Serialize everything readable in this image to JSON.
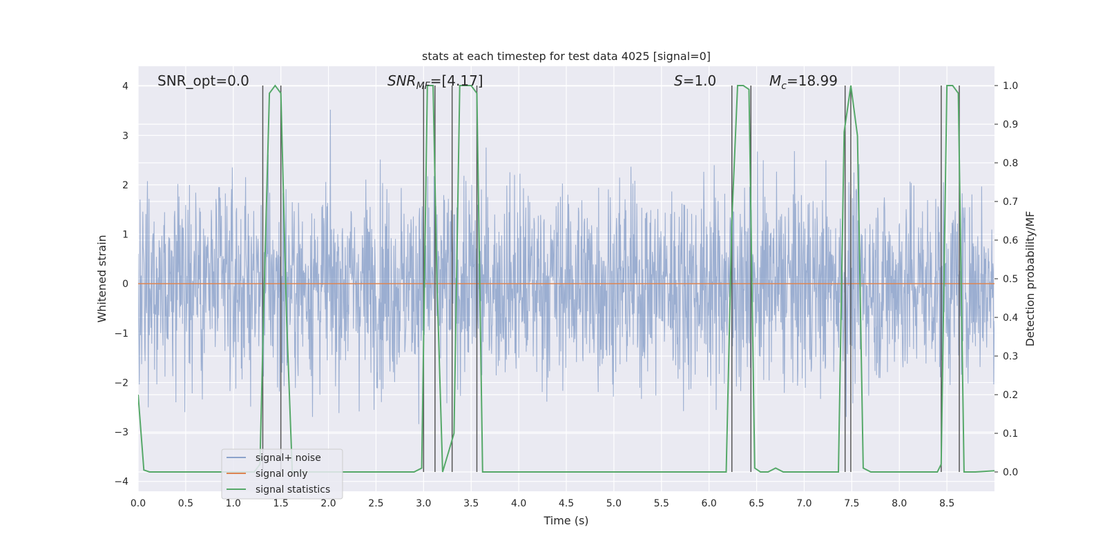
{
  "chart_data": {
    "type": "line",
    "title": "stats at each timestep for test data 4025 [signal=0]",
    "xlabel": "Time (s)",
    "ylabel": "Whitened strain",
    "y2label": "Detection probability/MF",
    "xlim": [
      0.0,
      9.0
    ],
    "ylim": [
      -4.2,
      4.4
    ],
    "y2lim": [
      -0.05,
      1.05
    ],
    "xticks": [
      0.0,
      0.5,
      1.0,
      1.5,
      2.0,
      2.5,
      3.0,
      3.5,
      4.0,
      4.5,
      5.0,
      5.5,
      6.0,
      6.5,
      7.0,
      7.5,
      8.0,
      8.5
    ],
    "xtick_labels": [
      "0.0",
      "0.5",
      "1.0",
      "1.5",
      "2.0",
      "2.5",
      "3.0",
      "3.5",
      "4.0",
      "4.5",
      "5.0",
      "5.5",
      "6.0",
      "6.5",
      "7.0",
      "7.5",
      "8.0",
      "8.5"
    ],
    "yticks": [
      -4,
      -3,
      -2,
      -1,
      0,
      1,
      2,
      3,
      4
    ],
    "ytick_labels": [
      "−4",
      "−3",
      "−2",
      "−1",
      "0",
      "1",
      "2",
      "3",
      "4"
    ],
    "y2ticks": [
      0.0,
      0.1,
      0.2,
      0.3,
      0.4,
      0.5,
      0.6,
      0.7,
      0.8,
      0.9,
      1.0
    ],
    "y2tick_labels": [
      "0.0",
      "0.1",
      "0.2",
      "0.3",
      "0.4",
      "0.5",
      "0.6",
      "0.7",
      "0.8",
      "0.9",
      "1.0"
    ],
    "grid": true,
    "legend_position": "lower-left",
    "annotations": {
      "snr_opt": "SNR_opt=0.0",
      "snr_mf_main": "SNR",
      "snr_mf_sub": "MF",
      "snr_mf_rest": "=[4.17]",
      "s_main": "S",
      "s_rest": "=1.0",
      "mc_main": "M",
      "mc_sub": "c",
      "mc_rest": "=18.99"
    },
    "series": [
      {
        "name": "signal+ noise",
        "color": "#4c72b0",
        "noise_envelope": {
          "core_band": [
            -1.5,
            1.7
          ],
          "peak_max": 4.0,
          "peak_min": -3.9
        }
      },
      {
        "name": "signal only",
        "color": "#dd8452",
        "value": 0.0
      },
      {
        "name": "signal statistics",
        "color": "#55a868",
        "axis": "right",
        "x": [
          0.0,
          0.06,
          0.12,
          1.22,
          1.28,
          1.32,
          1.38,
          1.44,
          1.5,
          1.56,
          1.62,
          2.9,
          2.98,
          3.04,
          3.1,
          3.14,
          3.2,
          3.26,
          3.32,
          3.38,
          3.44,
          3.5,
          3.56,
          3.62,
          3.7,
          6.18,
          6.24,
          6.3,
          6.36,
          6.42,
          6.48,
          6.54,
          6.62,
          6.7,
          6.78,
          6.9,
          7.36,
          7.42,
          7.49,
          7.56,
          7.62,
          7.7,
          8.4,
          8.44,
          8.5,
          8.56,
          8.62,
          8.68,
          8.8,
          9.0
        ],
        "y": [
          0.2,
          0.005,
          0.0,
          0.0,
          0.02,
          0.43,
          0.98,
          1.0,
          0.98,
          0.4,
          0.0,
          0.0,
          0.01,
          1.0,
          1.0,
          0.5,
          0.0,
          0.05,
          0.1,
          1.0,
          1.0,
          1.0,
          0.98,
          0.0,
          0.0,
          0.0,
          0.65,
          1.0,
          1.0,
          0.99,
          0.01,
          0.0,
          0.0,
          0.01,
          0.0,
          0.0,
          0.0,
          0.88,
          1.0,
          0.87,
          0.01,
          0.0,
          0.0,
          0.02,
          1.0,
          1.0,
          0.98,
          0.0,
          0.0,
          0.003
        ]
      }
    ],
    "vertical_lines": [
      1.31,
      1.5,
      3.0,
      3.12,
      3.3,
      3.56,
      6.24,
      6.44,
      7.43,
      7.49,
      8.44,
      8.63
    ]
  }
}
